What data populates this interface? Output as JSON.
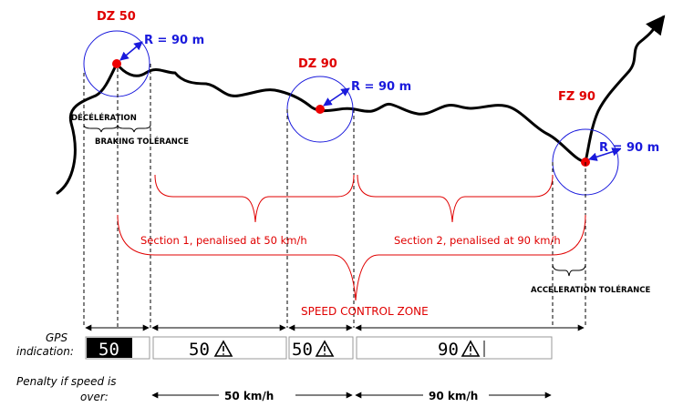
{
  "zones": {
    "dz50": {
      "name": "DZ 50",
      "radius": "R = 90 m"
    },
    "dz90": {
      "name": "DZ 90",
      "radius": "R = 90 m"
    },
    "fz90": {
      "name": "FZ 90",
      "radius": "R = 90 m"
    }
  },
  "labels": {
    "deceleration": "DÉCÉLÉRATION",
    "braking_tolerance": "BRAKING TOLÉRANCE",
    "section1": "Section 1, penalised at 50 km/h",
    "section2": "Section 2, penalised at 90 km/h",
    "acceleration_tolerance": "ACCELERATION TOLÉRANCE",
    "speed_control_zone": "SPEED CONTROL ZONE"
  },
  "gps": {
    "label_line1": "GPS",
    "label_line2": "indication:",
    "displays": [
      "50",
      "50",
      "50",
      "90"
    ]
  },
  "penalty": {
    "label_line1": "Penalty if speed is",
    "label_line2": "over:",
    "speed1": "50 km/h",
    "speed2": "90 km/h"
  },
  "colors": {
    "zone_label": "#e00000",
    "radius_label": "#1a1adc",
    "route": "#000000",
    "center_dot": "#ee0000"
  }
}
